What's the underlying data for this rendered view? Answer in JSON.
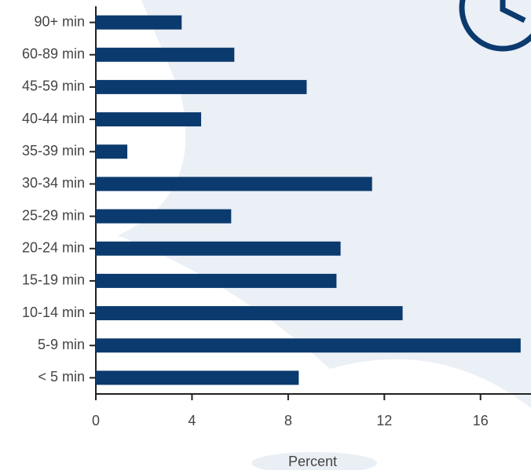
{
  "chart_data": {
    "type": "bar",
    "orientation": "horizontal",
    "x_label": "Percent",
    "categories": [
      "90+ min",
      "60-89 min",
      "45-59 min",
      "40-44 min",
      "35-39 min",
      "30-34 min",
      "25-29 min",
      "20-24 min",
      "15-19 min",
      "10-14 min",
      "5-9 min",
      "< 5 min"
    ],
    "values": [
      3.57,
      5.76,
      8.77,
      4.38,
      1.31,
      11.49,
      5.63,
      10.18,
      10.01,
      12.76,
      17.67,
      8.44
    ],
    "color": "#0b3a6e",
    "xlim": [
      0,
      18.1
    ],
    "xticks": [
      0,
      4,
      8,
      12,
      16
    ],
    "grid": false
  }
}
